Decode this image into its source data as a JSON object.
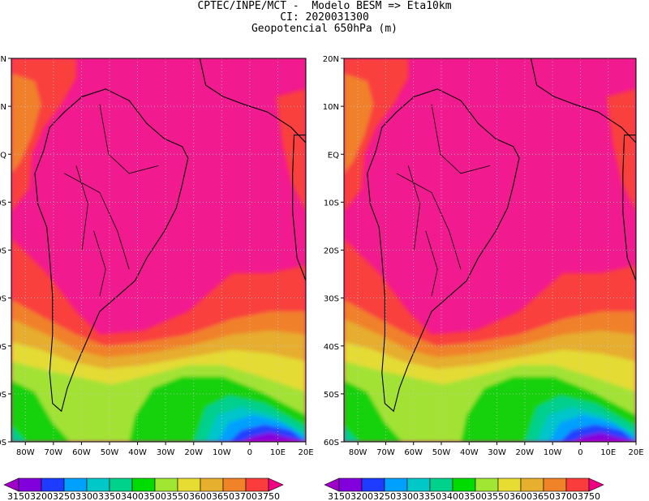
{
  "title_lines": [
    "CPTEC/INPE/MCT -  Modelo BESM => Eta10km",
    "CI: 2020031300",
    "Geopotencial 650hPa (m)"
  ],
  "map": {
    "region": "South America / South Atlantic",
    "field": "Geopotencial 650hPa (m)",
    "lon_ticks": [
      "80W",
      "70W",
      "60W",
      "50W",
      "40W",
      "30W",
      "20W",
      "10W",
      "0",
      "10E",
      "20E"
    ],
    "lat_ticks": [
      "20N",
      "10N",
      "EQ",
      "10S",
      "20S",
      "30S",
      "40S",
      "50S",
      "60S"
    ],
    "lon_range": [
      -85,
      20
    ],
    "lat_range": [
      -60,
      20
    ],
    "grid": true,
    "panels": [
      "left-panel",
      "right-panel"
    ]
  },
  "colorbar": {
    "levels": [
      "3150",
      "3200",
      "3250",
      "3300",
      "3350",
      "3400",
      "3500",
      "3550",
      "3600",
      "3650",
      "3700",
      "3750"
    ],
    "colors": [
      "#a000c8",
      "#8200dc",
      "#1e3cff",
      "#00a0ff",
      "#00c8c8",
      "#00d28c",
      "#00dc00",
      "#a0e632",
      "#e6dc32",
      "#e6af2d",
      "#f08228",
      "#fa3c3c",
      "#f00082"
    ]
  },
  "field_colors": {
    "magenta": "#f21a8f",
    "red": "#f9413d",
    "orange": "#f0812b",
    "amber": "#e6ad2f",
    "yellow": "#e4dc35",
    "lime": "#a2e234",
    "green": "#12d20c",
    "teal": "#00cf8e",
    "cyan": "#00c5ca",
    "sky": "#00a0ff",
    "blue": "#2040ff",
    "violet": "#8500db"
  }
}
